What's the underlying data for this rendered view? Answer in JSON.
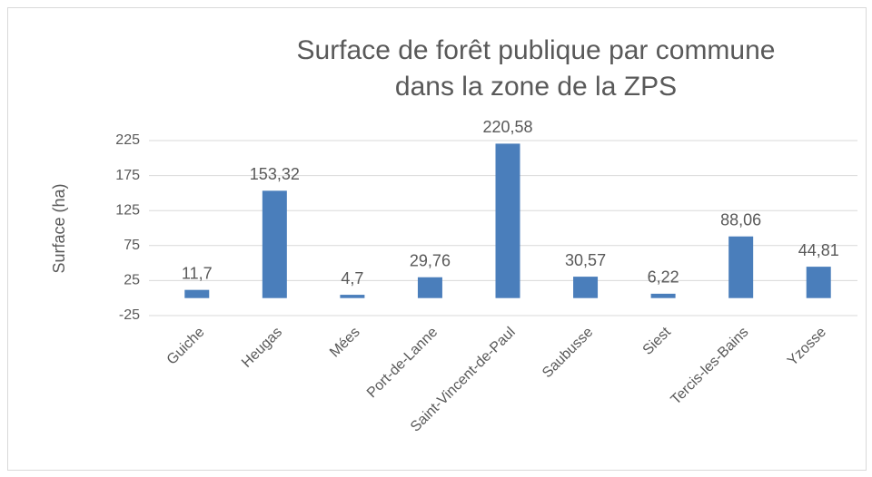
{
  "chart_data": {
    "type": "bar",
    "title": "Surface de forêt publique par commune dans la zone de la ZPS",
    "y_label": "Surface (ha)",
    "categories": [
      "Guiche",
      "Heugas",
      "Mées",
      "Port-de-Lanne",
      "Saint-Vincent-de-Paul",
      "Saubusse",
      "Siest",
      "Tercis-les-Bains",
      "Yzosse"
    ],
    "values": [
      11.7,
      153.32,
      4.7,
      29.76,
      220.58,
      30.57,
      6.22,
      88.06,
      44.81
    ],
    "value_labels": [
      "11,7",
      "153,32",
      "4,7",
      "29,76",
      "220,58",
      "30,57",
      "6,22",
      "88,06",
      "44,81"
    ],
    "color": "#4a7ebb",
    "ylim": [
      -25,
      225
    ],
    "yticks": [
      -25,
      25,
      75,
      125,
      175,
      225
    ],
    "grid": true
  }
}
